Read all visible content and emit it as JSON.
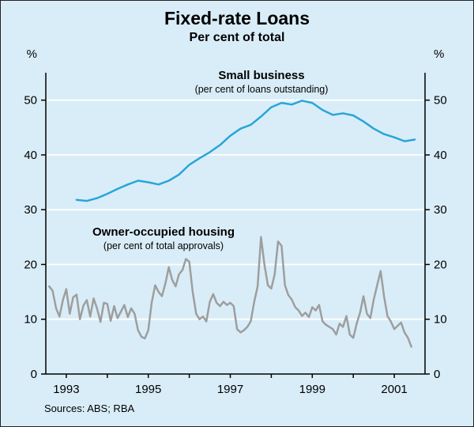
{
  "title": "Fixed-rate Loans",
  "subtitle": "Per cent of total",
  "sources_label": "Sources: ABS; RBA",
  "unit_label": "%",
  "colors": {
    "background": "#d9edf8",
    "grid": "#ffffff",
    "axis": "#000000",
    "small_business_line": "#29a5d8",
    "housing_line": "#9e9e9e"
  },
  "chart_data": {
    "type": "line",
    "title": "Fixed-rate Loans",
    "subtitle": "Per cent of total",
    "ylabel": "%",
    "x_range": [
      1992.5,
      2001.75
    ],
    "y_range": [
      0,
      55
    ],
    "y_ticks": [
      0,
      10,
      20,
      30,
      40,
      50
    ],
    "x_tick_years": [
      1993,
      1994,
      1995,
      1996,
      1997,
      1998,
      1999,
      2000,
      2001
    ],
    "x_label_years": [
      1993,
      1995,
      1997,
      1999,
      2001
    ],
    "grid": true,
    "series": [
      {
        "name": "small-business",
        "label": "Small business",
        "sublabel": "(per cent of loans outstanding)",
        "color": "#29a5d8",
        "x_start": 1993.25,
        "x_step": 0.25,
        "values": [
          31.8,
          31.6,
          32.1,
          32.9,
          33.8,
          34.6,
          35.3,
          35.0,
          34.6,
          35.3,
          36.4,
          38.2,
          39.4,
          40.5,
          41.8,
          43.5,
          44.8,
          45.5,
          47.0,
          48.7,
          49.5,
          49.2,
          49.9,
          49.5,
          48.2,
          47.3,
          47.6,
          47.2,
          46.1,
          44.8,
          43.8,
          43.2,
          42.5,
          42.8
        ]
      },
      {
        "name": "owner-occupied-housing",
        "label": "Owner-occupied housing",
        "sublabel": "(per cent of total approvals)",
        "color": "#9e9e9e",
        "x_start": 1992.583,
        "x_step": 0.0833333,
        "values": [
          16.0,
          15.2,
          12.0,
          10.5,
          13.5,
          15.5,
          11.0,
          14.0,
          14.5,
          10.0,
          12.5,
          13.5,
          10.5,
          13.8,
          12.0,
          9.5,
          13.0,
          12.8,
          9.7,
          12.4,
          10.2,
          11.4,
          12.6,
          10.4,
          12.0,
          11.0,
          8.0,
          6.8,
          6.5,
          8.0,
          13.0,
          16.2,
          15.0,
          14.2,
          16.5,
          19.5,
          17.2,
          16.0,
          18.2,
          19.0,
          21.0,
          20.5,
          15.0,
          11.0,
          10.0,
          10.5,
          9.6,
          13.2,
          14.6,
          13.0,
          12.4,
          13.2,
          12.6,
          13.0,
          12.4,
          8.2,
          7.6,
          8.0,
          8.6,
          9.6,
          13.2,
          16.0,
          25.0,
          20.0,
          16.2,
          15.6,
          18.2,
          24.2,
          23.4,
          16.2,
          14.4,
          13.6,
          12.2,
          11.6,
          10.6,
          11.2,
          10.4,
          12.2,
          11.6,
          12.6,
          9.6,
          9.0,
          8.6,
          8.2,
          7.2,
          9.2,
          8.6,
          10.6,
          7.2,
          6.6,
          9.2,
          11.2,
          14.2,
          11.0,
          10.2,
          13.6,
          16.2,
          18.8,
          14.2,
          10.6,
          9.6,
          8.2,
          8.8,
          9.4,
          7.6,
          6.6,
          5.0
        ]
      }
    ]
  }
}
